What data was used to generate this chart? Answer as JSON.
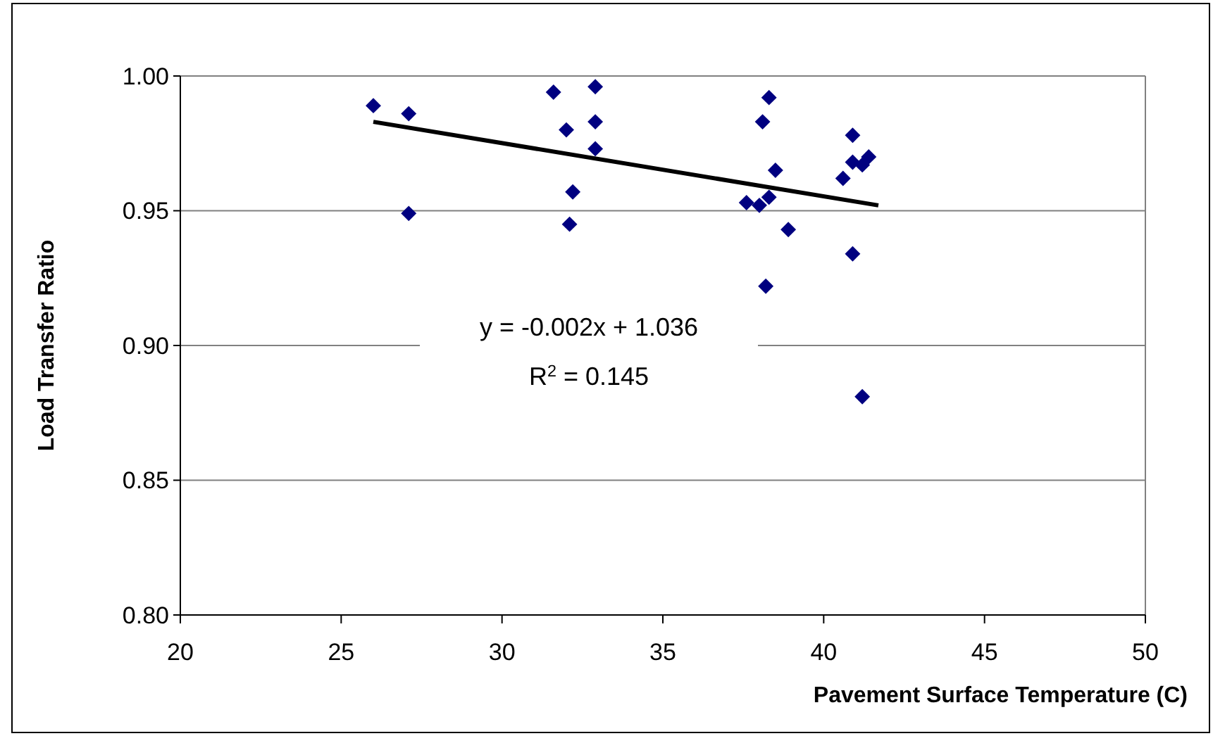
{
  "chart_data": {
    "type": "scatter",
    "xlabel": "Pavement Surface Temperature (C)",
    "ylabel": "Load Transfer Ratio",
    "xlim": [
      20,
      50
    ],
    "xticks": [
      20,
      25,
      30,
      35,
      40,
      45,
      50
    ],
    "ylim": [
      0.8,
      1.0
    ],
    "yticks": [
      {
        "value": 0.8,
        "label": "0.80"
      },
      {
        "value": 0.85,
        "label": "0.85"
      },
      {
        "value": 0.9,
        "label": "0.90"
      },
      {
        "value": 0.95,
        "label": "0.95"
      },
      {
        "value": 1.0,
        "label": "1.00"
      }
    ],
    "grid": "y",
    "marker": "diamond",
    "annotations": [
      "y = -0.002x + 1.036",
      "R$^{2}$ = 0.145"
    ],
    "series": [
      {
        "color": "#000080",
        "x": [
          26.0,
          27.1,
          27.1,
          31.6,
          32.9,
          32.0,
          32.9,
          32.9,
          32.2,
          32.1,
          38.3,
          38.1,
          38.5,
          37.6,
          38.0,
          38.3,
          38.9,
          38.2,
          40.9,
          40.6,
          40.9,
          41.2,
          41.4,
          40.9,
          41.2
        ],
        "values": [
          0.989,
          0.986,
          0.949,
          0.994,
          0.996,
          0.98,
          0.983,
          0.973,
          0.957,
          0.945,
          0.992,
          0.983,
          0.965,
          0.953,
          0.952,
          0.955,
          0.943,
          0.922,
          0.978,
          0.962,
          0.968,
          0.967,
          0.97,
          0.934,
          0.881
        ]
      },
      {
        "type": "line",
        "color": "#000000",
        "line_style": "solid",
        "marker": "none",
        "x": [
          26.0,
          41.7
        ],
        "values": [
          0.983,
          0.952
        ]
      }
    ]
  }
}
